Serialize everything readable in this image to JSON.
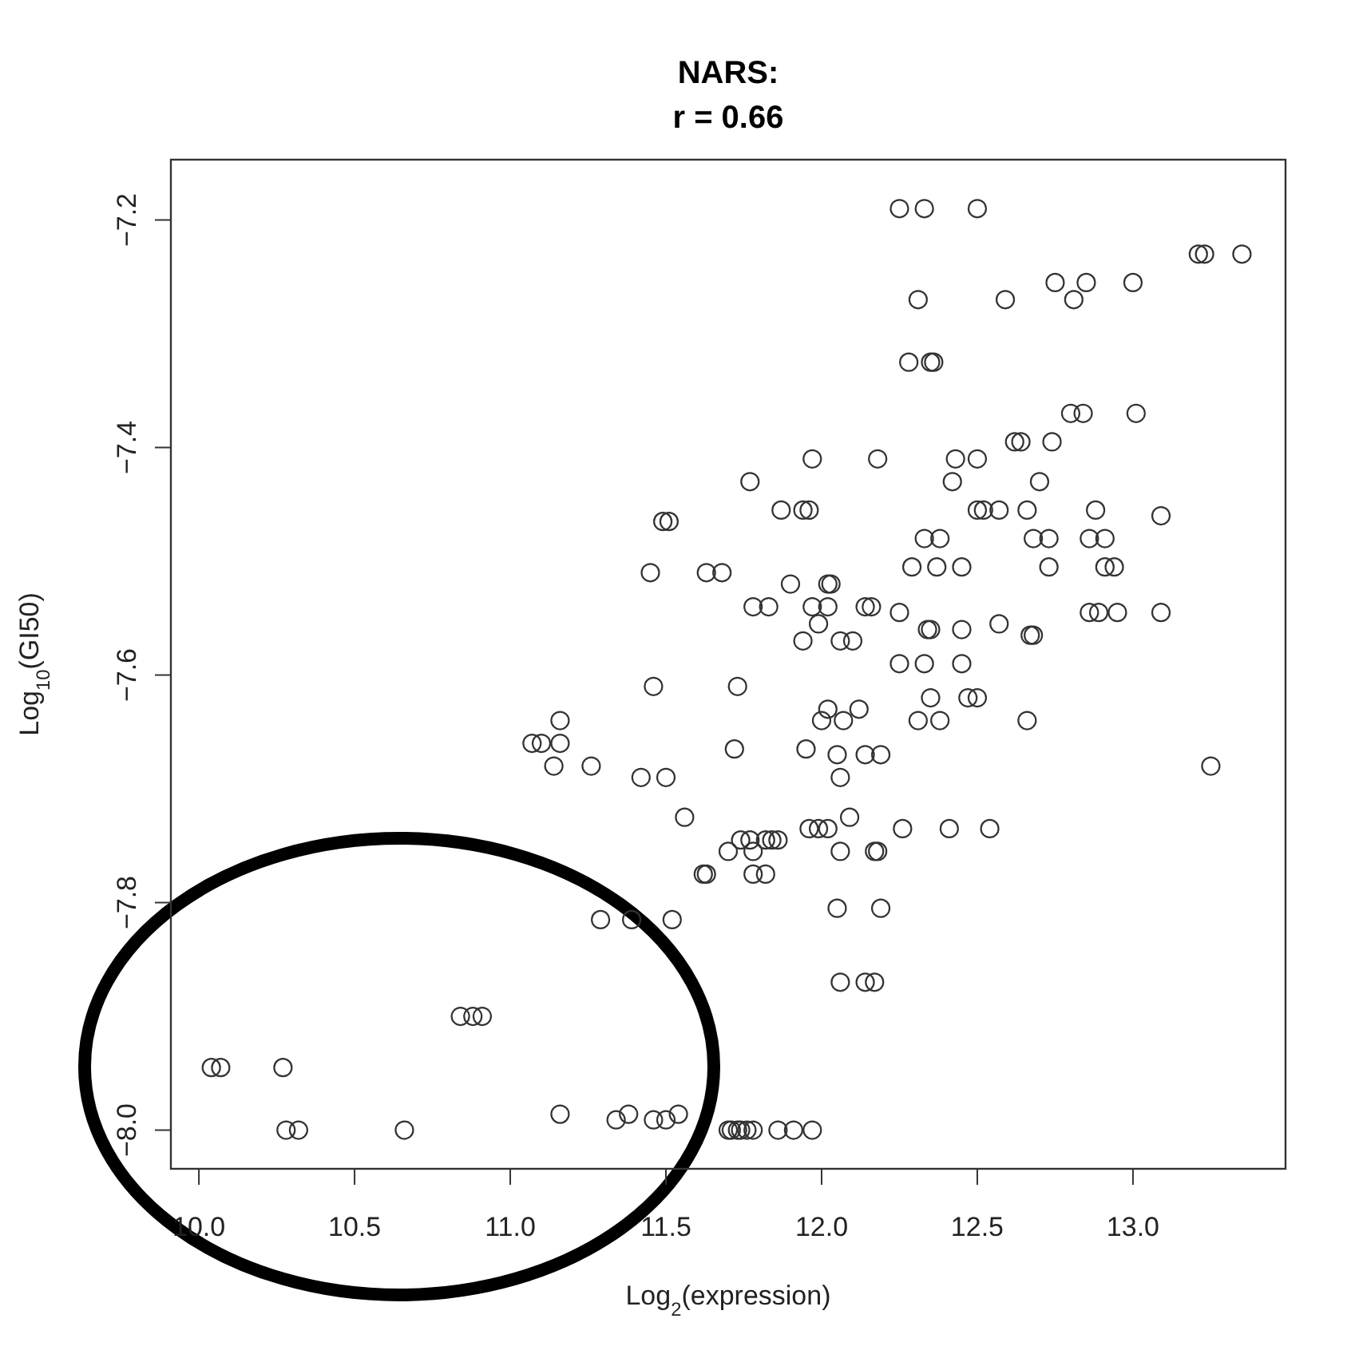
{
  "chart_data": {
    "type": "scatter",
    "title": "NARS:",
    "subtitle": "r = 0.66",
    "xlabel": "Log$_{2}$(expression)",
    "ylabel": "Log$_{10}$(GI50)",
    "xlim": [
      9.91,
      13.49
    ],
    "ylim": [
      -8.034,
      -7.147
    ],
    "xticks": [
      {
        "value": 10,
        "label": "10.0"
      },
      {
        "value": 10.5,
        "label": "10.5"
      },
      {
        "value": 11,
        "label": "11.0"
      },
      {
        "value": 11.5,
        "label": "11.5"
      },
      {
        "value": 12,
        "label": "12.0"
      },
      {
        "value": 12.5,
        "label": "12.5"
      },
      {
        "value": 13,
        "label": "13.0"
      }
    ],
    "yticks": [
      {
        "value": -8,
        "label": "−8.0"
      },
      {
        "value": -7.8,
        "label": "−7.8"
      },
      {
        "value": -7.6,
        "label": "−7.6"
      },
      {
        "value": -7.4,
        "label": "−7.4"
      },
      {
        "value": -7.2,
        "label": "−7.2"
      }
    ],
    "marker": "circle",
    "grid": false,
    "series": [
      {
        "color": "#333333",
        "x": [
          12.25,
          12.33,
          12.5,
          13.21,
          13.23,
          13.35,
          12.75,
          12.85,
          13.0,
          12.81,
          12.31,
          12.59,
          12.28,
          12.35,
          12.36,
          12.8,
          12.84,
          13.01,
          12.62,
          12.64,
          12.74,
          11.97,
          12.18,
          12.43,
          12.5,
          11.77,
          12.42,
          12.7,
          11.87,
          11.94,
          11.96,
          12.5,
          12.52,
          12.57,
          12.66,
          12.88,
          13.09,
          11.49,
          11.51,
          11.45,
          11.63,
          11.68,
          12.33,
          12.38,
          12.68,
          12.73,
          12.86,
          12.91,
          12.29,
          12.37,
          12.45,
          12.73,
          12.91,
          12.94,
          11.9,
          12.02,
          12.03,
          11.78,
          11.83,
          11.97,
          12.02,
          12.14,
          12.16,
          12.25,
          12.86,
          12.89,
          12.95,
          13.09,
          11.99,
          12.57,
          12.34,
          12.35,
          12.45,
          12.67,
          12.68,
          11.94,
          12.06,
          12.1,
          12.25,
          12.33,
          12.45,
          11.73,
          12.35,
          12.47,
          12.5,
          12.02,
          12.12,
          12.0,
          12.07,
          12.31,
          12.38,
          12.66,
          11.72,
          11.95,
          12.05,
          12.14,
          12.19,
          13.25,
          12.06,
          12.09,
          11.96,
          11.99,
          12.02,
          12.26,
          12.41,
          12.54,
          11.74,
          11.77,
          11.82,
          11.84,
          11.86,
          11.7,
          11.78,
          12.06,
          12.17,
          12.18,
          11.63,
          11.78,
          11.82,
          12.05,
          12.19,
          12.06,
          12.14,
          12.17,
          11.7,
          11.71,
          11.73,
          11.74,
          11.76,
          11.78,
          11.86,
          11.91,
          11.97,
          11.46,
          11.16,
          11.07,
          11.1,
          11.16,
          11.14,
          11.26,
          11.42,
          11.5,
          11.56,
          11.62,
          11.29,
          11.39,
          11.52,
          10.84,
          10.88,
          10.91,
          10.04,
          10.07,
          10.27,
          10.28,
          10.32,
          10.66,
          11.16,
          11.34,
          11.38,
          11.46,
          11.5,
          11.54
        ],
        "values": [
          -7.19,
          -7.19,
          -7.19,
          -7.23,
          -7.23,
          -7.23,
          -7.255,
          -7.255,
          -7.255,
          -7.27,
          -7.27,
          -7.27,
          -7.325,
          -7.325,
          -7.325,
          -7.37,
          -7.37,
          -7.37,
          -7.395,
          -7.395,
          -7.395,
          -7.41,
          -7.41,
          -7.41,
          -7.41,
          -7.43,
          -7.43,
          -7.43,
          -7.455,
          -7.455,
          -7.455,
          -7.455,
          -7.455,
          -7.455,
          -7.455,
          -7.455,
          -7.46,
          -7.465,
          -7.465,
          -7.51,
          -7.51,
          -7.51,
          -7.48,
          -7.48,
          -7.48,
          -7.48,
          -7.48,
          -7.48,
          -7.505,
          -7.505,
          -7.505,
          -7.505,
          -7.505,
          -7.505,
          -7.52,
          -7.52,
          -7.52,
          -7.54,
          -7.54,
          -7.54,
          -7.54,
          -7.54,
          -7.54,
          -7.545,
          -7.545,
          -7.545,
          -7.545,
          -7.545,
          -7.555,
          -7.555,
          -7.56,
          -7.56,
          -7.56,
          -7.565,
          -7.565,
          -7.57,
          -7.57,
          -7.57,
          -7.59,
          -7.59,
          -7.59,
          -7.61,
          -7.62,
          -7.62,
          -7.62,
          -7.63,
          -7.63,
          -7.64,
          -7.64,
          -7.64,
          -7.64,
          -7.64,
          -7.665,
          -7.665,
          -7.67,
          -7.67,
          -7.67,
          -7.68,
          -7.69,
          -7.725,
          -7.735,
          -7.735,
          -7.735,
          -7.735,
          -7.735,
          -7.735,
          -7.745,
          -7.745,
          -7.745,
          -7.745,
          -7.745,
          -7.755,
          -7.755,
          -7.755,
          -7.755,
          -7.755,
          -7.775,
          -7.775,
          -7.775,
          -7.805,
          -7.805,
          -7.87,
          -7.87,
          -7.87,
          -8.0,
          -8.0,
          -8.0,
          -8.0,
          -8.0,
          -8.0,
          -8.0,
          -8.0,
          -8.0,
          -7.61,
          -7.64,
          -7.66,
          -7.66,
          -7.66,
          -7.68,
          -7.68,
          -7.69,
          -7.69,
          -7.725,
          -7.775,
          -7.815,
          -7.815,
          -7.815,
          -7.9,
          -7.9,
          -7.9,
          -7.945,
          -7.945,
          -7.945,
          -8.0,
          -8.0,
          -8.0,
          -7.986,
          -7.991,
          -7.986,
          -7.991,
          -7.991,
          -7.986
        ]
      }
    ]
  }
}
